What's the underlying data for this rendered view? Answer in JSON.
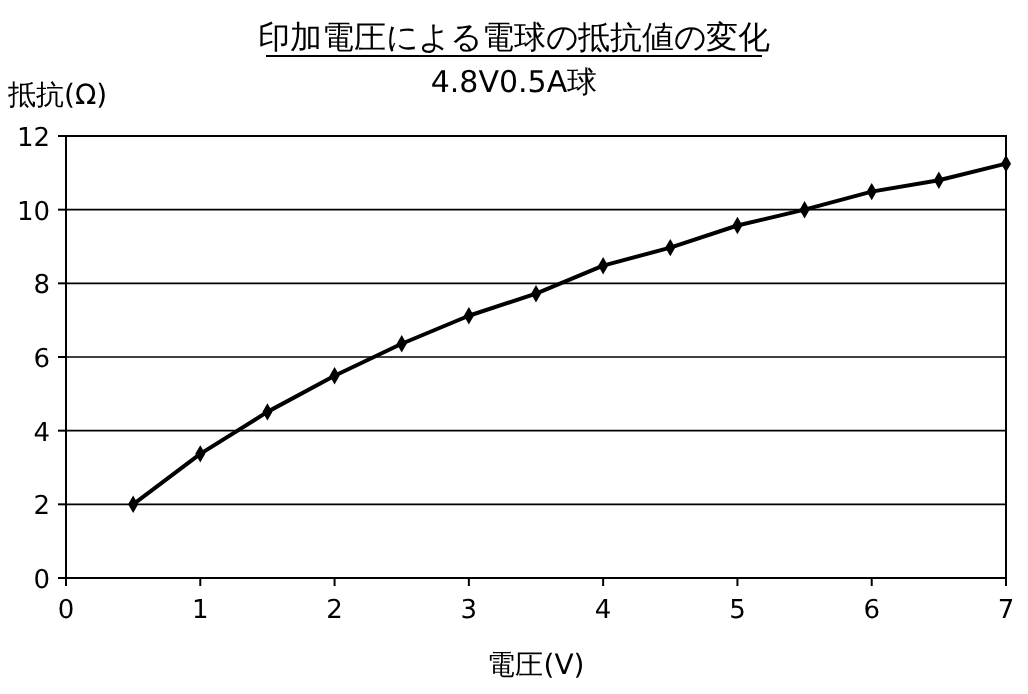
{
  "chart_data": {
    "type": "line",
    "title": "印加電圧による電球の抵抗値の変化",
    "subtitle": "4.8V0.5A球",
    "xlabel": "電圧(V)",
    "ylabel": "抵抗(Ω)",
    "x": [
      0.5,
      1,
      1.5,
      2,
      2.5,
      3,
      3.5,
      4,
      4.5,
      5,
      5.5,
      6,
      6.5,
      7
    ],
    "series": [
      {
        "color": "#000000",
        "values": [
          2.0,
          3.37,
          4.51,
          5.49,
          6.36,
          7.12,
          7.72,
          8.48,
          8.97,
          9.57,
          10.0,
          10.49,
          10.8,
          11.25
        ]
      }
    ],
    "xlim": [
      0,
      7
    ],
    "xticks": [
      0,
      1,
      2,
      3,
      4,
      5,
      6,
      7
    ],
    "ylim": [
      0,
      12
    ],
    "yticks": [
      0,
      2,
      4,
      6,
      8,
      10,
      12
    ],
    "grid": "y",
    "marker": "diamond",
    "line_style": "solid"
  }
}
